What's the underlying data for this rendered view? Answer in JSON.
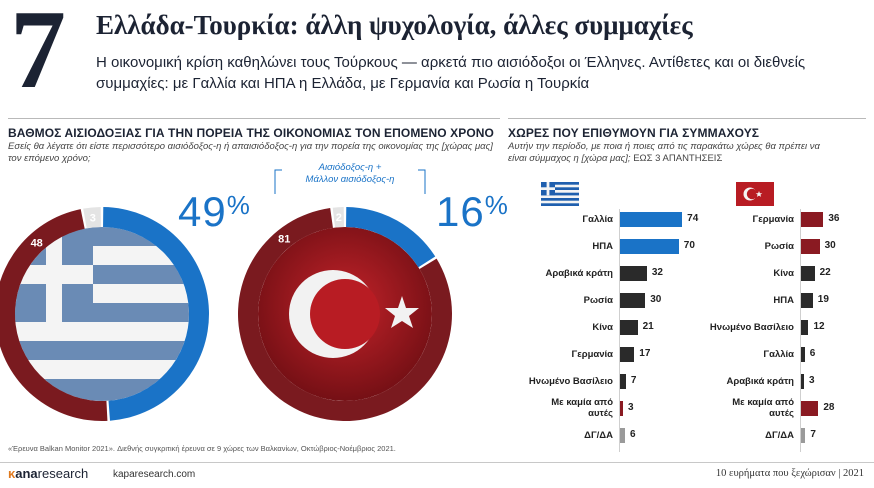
{
  "header": {
    "number": "7",
    "title": "Ελλάδα-Τουρκία: άλλη ψυχολογία, άλλες συμμαχίες",
    "subtitle": "Η οικονομική κρίση καθηλώνει τους Τούρκους — αρκετά πιο αισιόδοξοι οι Έλληνες. Αντίθετες και οι διεθνείς συμμαχίες: με Γαλλία και ΗΠΑ η Ελλάδα, με Γερμανία και Ρωσία η Τουρκία"
  },
  "left_section": {
    "heading": "ΒΑΘΜΟΣ ΑΙΣΙΟΔΟΞΙΑΣ ΓΙΑ ΤΗΝ ΠΟΡΕΙΑ ΤΗΣ ΟΙΚΟΝΟΜΙΑΣ ΤΟΝ ΕΠΟΜΕΝΟ ΧΡΟΝΟ",
    "question": "Εσείς θα λέγατε ότι είστε περισσότερο αισιόδοξος-η ή απαισιόδοξος-η για την πορεία της οικονομίας της [χώρας μας] τον επόμενο χρόνο;",
    "legend_line1": "Αισιόδοξος-η +",
    "legend_line2": "Μάλλον αισιόδοξος-η",
    "greece_pct": "49",
    "turkey_pct": "16",
    "pct_sign": "%"
  },
  "right_section": {
    "heading": "ΧΩΡΕΣ ΠΟΥ ΕΠΙΘΥΜΟΥΝ ΓΙΑ ΣΥΜΜΑΧΟΥΣ",
    "question": "Αυτήν την περίοδο, με ποια ή ποιες από τις παρακάτω χώρες θα πρέπει να είναι σύμμαχος η [χώρα μας];",
    "question_tail": "ΕΩΣ 3 ΑΠΑΝΤΗΣΕΙΣ"
  },
  "chart_data": [
    {
      "type": "pie",
      "title": "",
      "country": "greece-flag",
      "categories": [
        "Αισιόδοξος-η + Μάλλον αισιόδοξος-η",
        "",
        "ΔΓ/ΔΑ"
      ],
      "values": [
        49,
        48,
        3
      ],
      "labels": [
        "49%",
        "48",
        "3"
      ],
      "colors": [
        "#1a73c7",
        "#7a1a1f",
        "#e4e4e4"
      ]
    },
    {
      "type": "pie",
      "title": "",
      "country": "turkey-flag",
      "categories": [
        "Αισιόδοξος-η + Μάλλον αισιόδοξος-η",
        "",
        "ΔΓ/ΔΑ"
      ],
      "values": [
        16,
        81,
        2
      ],
      "labels": [
        "16%",
        "81",
        "2"
      ],
      "colors": [
        "#1a73c7",
        "#7a1a1f",
        "#e4e4e4"
      ]
    },
    {
      "type": "bar",
      "title": "",
      "country": "greece-flag",
      "categories": [
        "Γαλλία",
        "ΗΠΑ",
        "Αραβικά κράτη",
        "Ρωσία",
        "Κίνα",
        "Γερμανία",
        "Ηνωμένο Βασίλειο",
        "Με καμία από αυτές",
        "ΔΓ/ΔΑ"
      ],
      "values": [
        74,
        70,
        32,
        30,
        21,
        17,
        7,
        3,
        6
      ],
      "colors": [
        "#1a73c7",
        "#1a73c7",
        "#2a2a2a",
        "#2a2a2a",
        "#2a2a2a",
        "#2a2a2a",
        "#2a2a2a",
        "#8a1a22",
        "#9a9a9a"
      ]
    },
    {
      "type": "bar",
      "title": "",
      "country": "turkey-flag",
      "categories": [
        "Γερμανία",
        "Ρωσία",
        "Κίνα",
        "ΗΠΑ",
        "Ηνωμένο Βασίλειο",
        "Γαλλία",
        "Αραβικά κράτη",
        "Με καμία από αυτές",
        "ΔΓ/ΔΑ"
      ],
      "values": [
        36,
        30,
        22,
        19,
        12,
        6,
        3,
        28,
        7
      ],
      "colors": [
        "#8a1a22",
        "#8a1a22",
        "#2a2a2a",
        "#2a2a2a",
        "#2a2a2a",
        "#2a2a2a",
        "#2a2a2a",
        "#8a1a22",
        "#9a9a9a"
      ]
    }
  ],
  "footer": {
    "note": "«Έρευνα Balkan Monitor 2021». Διεθνής συγκριτική έρευνα σε 9 χώρες των Βαλκανίων, Οκτώβριος-Νοέμβριος 2021.",
    "brand_k": "κ",
    "brand_bold": "ana",
    "brand_rest": "research",
    "site": "kaparesearch.com",
    "right": "10 ευρήματα που ξεχώρισαν | 2021"
  }
}
